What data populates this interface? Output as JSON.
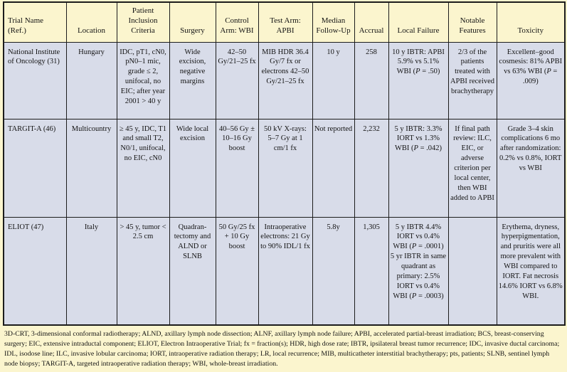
{
  "colors": {
    "page_bg": "#FBF5CE",
    "header_bg": "#FBF5CE",
    "row_bg": "#D8DCE9",
    "border": "#1C1C1C"
  },
  "table": {
    "columns": [
      "Trial Name (Ref.)",
      "Location",
      "Patient Inclusion Criteria",
      "Surgery",
      "Control Arm: WBI",
      "Test Arm: APBI",
      "Median Follow-Up",
      "Accrual",
      "Local Failure",
      "Notable Features",
      "Toxicity"
    ],
    "rows": [
      [
        "National Institute of Oncology (31)",
        "Hungary",
        "IDC, pT1, cN0, pN0–1 mic, grade ≤ 2, unifocal, no EIC; after year 2001 > 40 y",
        "Wide excision, negative margins",
        "42–50 Gy/21–25 fx",
        "MIB HDR 36.4 Gy/7 fx or electrons 42–50 Gy/​21–25 fx",
        "10 y",
        "258",
        "10 y IBTR: APBI 5.9% vs 5.1% WBI (P = .50)",
        "2/3 of the patients treated with APBI received brachy­therapy",
        "Excellent–good cosmesis: 81% APBI vs 63% WBI (P = .009)"
      ],
      [
        "TARGIT-A (46)",
        "Multicountry",
        "≥ 45 y, IDC, T1 and small T2, N0/1, unifocal, no EIC, cN0",
        "Wide local excision",
        "40–56 Gy ± 10–16 Gy boost",
        "50 kV X-rays: 5–7 Gy at 1 cm/1 fx",
        "Not reported",
        "2,232",
        "5 y IBTR: 3.3% IORT vs 1.3% WBI (P = .042)",
        "If final path review: ILC, EIC, or adverse criterion per local center, then WBI added to APBI",
        "Grade 3–4 skin complications 6 mo after randomization: 0.2% vs 0.8%, IORT vs WBI"
      ],
      [
        "ELIOT (47)",
        "Italy",
        "> 45 y, tumor < 2.5 cm",
        "Quadran­tectomy and ALND or SLNB",
        "50 Gy/25 fx + 10 Gy boost",
        "Intraoperative electrons: 21 Gy to 90% IDL/1 fx",
        "5.8y",
        "1,305",
        "5 y IBTR 4.4% IORT vs 0.4% WBI (P = .0001) 5 yr IBTR in same quadrant as primary: 2.5% IORT vs 0.4% WBI (P = .0003)",
        "",
        "Erythema, dryness, hyperpigmentation, and pruritis were all more prevalent with WBI compared to IORT. Fat necrosis 14.6% IORT vs 6.8% WBI."
      ]
    ]
  },
  "footnote": {
    "text": "3D-CRT, 3-dimensional conformal radiotherapy; ALND, axillary lymph node dissection; ALNF, axillary lymph node failure; APBI, accelerated partial-breast irradiation; BCS, breast-conserving surgery; EIC, extensive intraductal component; ELIOT, Electron Intraoperative Trial; fx = fraction(s); HDR, high dose rate; IBTR, ipsilateral breast tumor recurrence; IDC, invasive ductal carcinoma; IDL, isodose line; ILC, invasive lobular carcinoma; IORT, intraoperative radiation therapy; LR, local recurrence; MIB, multicatheter interstitial brachytherapy; pts, patients; SLNB, sentinel lymph node biopsy; TARGIT-A, targeted intraoperative radiation therapy; WBI, whole-breast irradiation."
  }
}
